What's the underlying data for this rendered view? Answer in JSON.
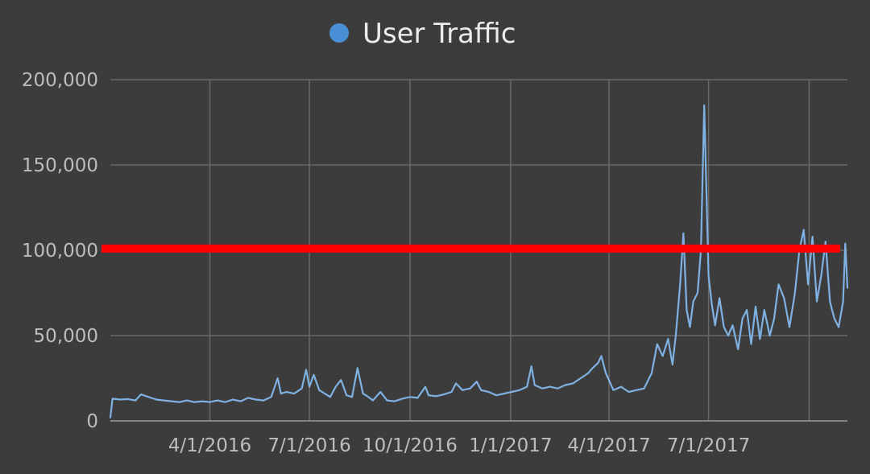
{
  "chart_data": {
    "type": "line",
    "legend": {
      "position": "top-center",
      "entries": [
        {
          "label": "User Traffic",
          "color": "#4a8fd6"
        }
      ]
    },
    "series": [
      {
        "name": "User Traffic",
        "color": "#7fb1e3",
        "points": [
          [
            "2016-01-01",
            2000
          ],
          [
            "2016-01-03",
            13000
          ],
          [
            "2016-01-10",
            12500
          ],
          [
            "2016-01-17",
            12800
          ],
          [
            "2016-01-24",
            12000
          ],
          [
            "2016-01-29",
            15500
          ],
          [
            "2016-02-05",
            14000
          ],
          [
            "2016-02-12",
            12500
          ],
          [
            "2016-02-19",
            12000
          ],
          [
            "2016-02-26",
            11500
          ],
          [
            "2016-03-04",
            11000
          ],
          [
            "2016-03-11",
            12000
          ],
          [
            "2016-03-18",
            11000
          ],
          [
            "2016-03-25",
            11500
          ],
          [
            "2016-04-01",
            11000
          ],
          [
            "2016-04-08",
            12000
          ],
          [
            "2016-04-15",
            11000
          ],
          [
            "2016-04-22",
            12500
          ],
          [
            "2016-04-29",
            11500
          ],
          [
            "2016-05-06",
            13500
          ],
          [
            "2016-05-13",
            12500
          ],
          [
            "2016-05-20",
            12000
          ],
          [
            "2016-05-27",
            14000
          ],
          [
            "2016-06-02",
            25000
          ],
          [
            "2016-06-05",
            16000
          ],
          [
            "2016-06-10",
            17000
          ],
          [
            "2016-06-17",
            16000
          ],
          [
            "2016-06-24",
            19000
          ],
          [
            "2016-06-28",
            30000
          ],
          [
            "2016-07-01",
            20000
          ],
          [
            "2016-07-05",
            27000
          ],
          [
            "2016-07-10",
            18000
          ],
          [
            "2016-07-15",
            16000
          ],
          [
            "2016-07-20",
            14000
          ],
          [
            "2016-07-25",
            20000
          ],
          [
            "2016-07-30",
            24000
          ],
          [
            "2016-08-04",
            15000
          ],
          [
            "2016-08-09",
            14000
          ],
          [
            "2016-08-14",
            31000
          ],
          [
            "2016-08-19",
            16000
          ],
          [
            "2016-08-24",
            14000
          ],
          [
            "2016-08-28",
            12000
          ],
          [
            "2016-09-04",
            17000
          ],
          [
            "2016-09-10",
            12000
          ],
          [
            "2016-09-17",
            11500
          ],
          [
            "2016-09-24",
            13000
          ],
          [
            "2016-10-01",
            14000
          ],
          [
            "2016-10-08",
            13500
          ],
          [
            "2016-10-15",
            20000
          ],
          [
            "2016-10-18",
            15000
          ],
          [
            "2016-10-25",
            14500
          ],
          [
            "2016-11-01",
            15500
          ],
          [
            "2016-11-08",
            17000
          ],
          [
            "2016-11-12",
            22000
          ],
          [
            "2016-11-18",
            18000
          ],
          [
            "2016-11-25",
            19000
          ],
          [
            "2016-12-01",
            23000
          ],
          [
            "2016-12-05",
            18000
          ],
          [
            "2016-12-12",
            17000
          ],
          [
            "2016-12-19",
            15000
          ],
          [
            "2016-12-26",
            16000
          ],
          [
            "2017-01-02",
            17000
          ],
          [
            "2017-01-09",
            18000
          ],
          [
            "2017-01-16",
            20000
          ],
          [
            "2017-01-20",
            32000
          ],
          [
            "2017-01-23",
            21000
          ],
          [
            "2017-01-30",
            19000
          ],
          [
            "2017-02-06",
            20000
          ],
          [
            "2017-02-13",
            19000
          ],
          [
            "2017-02-20",
            21000
          ],
          [
            "2017-02-27",
            22000
          ],
          [
            "2017-03-06",
            25000
          ],
          [
            "2017-03-13",
            28000
          ],
          [
            "2017-03-17",
            31000
          ],
          [
            "2017-03-22",
            34000
          ],
          [
            "2017-03-25",
            38000
          ],
          [
            "2017-03-29",
            28000
          ],
          [
            "2017-04-05",
            18000
          ],
          [
            "2017-04-12",
            20000
          ],
          [
            "2017-04-19",
            17000
          ],
          [
            "2017-04-26",
            18000
          ],
          [
            "2017-05-03",
            19000
          ],
          [
            "2017-05-10",
            28000
          ],
          [
            "2017-05-15",
            45000
          ],
          [
            "2017-05-20",
            38000
          ],
          [
            "2017-05-25",
            48000
          ],
          [
            "2017-05-29",
            33000
          ],
          [
            "2017-06-01",
            50000
          ],
          [
            "2017-06-05",
            80000
          ],
          [
            "2017-06-08",
            110000
          ],
          [
            "2017-06-11",
            65000
          ],
          [
            "2017-06-14",
            55000
          ],
          [
            "2017-06-17",
            70000
          ],
          [
            "2017-06-21",
            75000
          ],
          [
            "2017-06-24",
            100000
          ],
          [
            "2017-06-27",
            185000
          ],
          [
            "2017-07-01",
            85000
          ],
          [
            "2017-07-04",
            68000
          ],
          [
            "2017-07-07",
            56000
          ],
          [
            "2017-07-11",
            72000
          ],
          [
            "2017-07-15",
            55000
          ],
          [
            "2017-07-19",
            50000
          ],
          [
            "2017-07-23",
            56000
          ],
          [
            "2017-07-28",
            42000
          ],
          [
            "2017-08-01",
            60000
          ],
          [
            "2017-08-05",
            65000
          ],
          [
            "2017-08-09",
            45000
          ],
          [
            "2017-08-13",
            67000
          ],
          [
            "2017-08-17",
            48000
          ],
          [
            "2017-08-21",
            65000
          ],
          [
            "2017-08-26",
            50000
          ],
          [
            "2017-08-30",
            60000
          ],
          [
            "2017-09-03",
            80000
          ],
          [
            "2017-09-08",
            72000
          ],
          [
            "2017-09-13",
            55000
          ],
          [
            "2017-09-18",
            75000
          ],
          [
            "2017-09-22",
            100000
          ],
          [
            "2017-09-26",
            112000
          ],
          [
            "2017-09-30",
            80000
          ],
          [
            "2017-10-04",
            108000
          ],
          [
            "2017-10-08",
            70000
          ],
          [
            "2017-10-12",
            85000
          ],
          [
            "2017-10-16",
            105000
          ],
          [
            "2017-10-20",
            70000
          ],
          [
            "2017-10-24",
            60000
          ],
          [
            "2017-10-28",
            55000
          ],
          [
            "2017-11-01",
            70000
          ],
          [
            "2017-11-03",
            104000
          ],
          [
            "2017-11-05",
            78000
          ]
        ]
      }
    ],
    "threshold_line": {
      "value": 101000,
      "color": "#ff0000"
    },
    "x_axis": {
      "type": "date",
      "range": [
        "2016-01-01",
        "2017-11-05"
      ],
      "ticks": [
        {
          "date": "2016-04-01",
          "label": "4/1/2016"
        },
        {
          "date": "2016-07-01",
          "label": "7/1/2016"
        },
        {
          "date": "2016-10-01",
          "label": "10/1/2016"
        },
        {
          "date": "2017-01-01",
          "label": "1/1/2017"
        },
        {
          "date": "2017-04-01",
          "label": "4/1/2017"
        },
        {
          "date": "2017-07-01",
          "label": "7/1/2017"
        }
      ],
      "extra_gridlines": [
        "2017-10-01"
      ]
    },
    "y_axis": {
      "range": [
        0,
        200000
      ],
      "ticks": [
        {
          "value": 0,
          "label": "0"
        },
        {
          "value": 50000,
          "label": "50,000"
        },
        {
          "value": 100000,
          "label": "100,000"
        },
        {
          "value": 150000,
          "label": "150,000"
        },
        {
          "value": 200000,
          "label": "200,000"
        }
      ]
    },
    "grid": true,
    "background": "#3c3c3c",
    "gridline_color": "#686868",
    "tick_label_color": "#bdbdbd",
    "legend_text_color": "#ececec"
  }
}
